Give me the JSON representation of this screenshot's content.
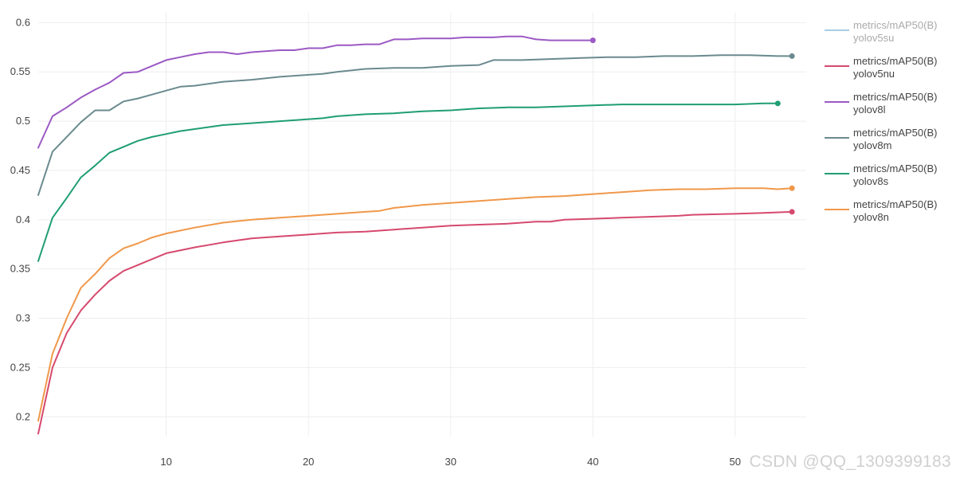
{
  "chart_data": {
    "type": "line",
    "xlim": [
      1,
      55
    ],
    "ylim": [
      0.18,
      0.61
    ],
    "x_ticks": [
      10,
      20,
      30,
      40,
      50
    ],
    "y_ticks": [
      0.2,
      0.25,
      0.3,
      0.35,
      0.4,
      0.45,
      0.5,
      0.55,
      0.6
    ],
    "x_tick_labels": [
      "10",
      "20",
      "30",
      "40",
      "50"
    ],
    "y_tick_labels": [
      "0.2",
      "0.25",
      "0.3",
      "0.35",
      "0.4",
      "0.45",
      "0.5",
      "0.55",
      "0.6"
    ],
    "grid": true,
    "legend_position": "right",
    "series": [
      {
        "name_line1": "metrics/mAP50(B)",
        "name_line2": "yolov5su",
        "color": "#a6cee3",
        "muted": true,
        "x": [],
        "y": []
      },
      {
        "name_line1": "metrics/mAP50(B)",
        "name_line2": "yolov5nu",
        "color": "#d6496e",
        "muted": false,
        "x": [
          1,
          2,
          3,
          4,
          5,
          6,
          7,
          8,
          9,
          10,
          12,
          14,
          15,
          16,
          18,
          20,
          22,
          24,
          26,
          28,
          30,
          32,
          34,
          36,
          37,
          38,
          40,
          42,
          44,
          46,
          47,
          50,
          52,
          54
        ],
        "y": [
          0.183,
          0.25,
          0.285,
          0.308,
          0.324,
          0.338,
          0.348,
          0.354,
          0.36,
          0.366,
          0.372,
          0.377,
          0.379,
          0.381,
          0.383,
          0.385,
          0.387,
          0.388,
          0.39,
          0.392,
          0.394,
          0.395,
          0.396,
          0.398,
          0.398,
          0.4,
          0.401,
          0.402,
          0.403,
          0.404,
          0.405,
          0.406,
          0.407,
          0.408
        ]
      },
      {
        "name_line1": "metrics/mAP50(B)",
        "name_line2": "yolov8l",
        "color": "#9b59c4",
        "muted": false,
        "x": [
          1,
          2,
          3,
          4,
          5,
          6,
          7,
          8,
          9,
          10,
          11,
          12,
          13,
          14,
          15,
          16,
          17,
          18,
          19,
          20,
          21,
          22,
          23,
          24,
          25,
          26,
          27,
          28,
          29,
          30,
          31,
          32,
          33,
          34,
          35,
          36,
          37,
          38,
          39,
          40
        ],
        "y": [
          0.473,
          0.505,
          0.514,
          0.524,
          0.532,
          0.539,
          0.549,
          0.55,
          0.556,
          0.562,
          0.565,
          0.568,
          0.57,
          0.57,
          0.568,
          0.57,
          0.571,
          0.572,
          0.572,
          0.574,
          0.574,
          0.577,
          0.577,
          0.578,
          0.578,
          0.583,
          0.583,
          0.584,
          0.584,
          0.584,
          0.585,
          0.585,
          0.585,
          0.586,
          0.586,
          0.583,
          0.582,
          0.582,
          0.582,
          0.582
        ]
      },
      {
        "name_line1": "metrics/mAP50(B)",
        "name_line2": "yolov8m",
        "color": "#6a8a8f",
        "muted": false,
        "x": [
          1,
          2,
          3,
          4,
          5,
          6,
          7,
          8,
          9,
          10,
          11,
          12,
          14,
          16,
          18,
          20,
          21,
          22,
          24,
          26,
          28,
          30,
          32,
          33,
          35,
          37,
          39,
          41,
          43,
          45,
          47,
          49,
          51,
          53,
          54
        ],
        "y": [
          0.425,
          0.469,
          0.484,
          0.499,
          0.511,
          0.511,
          0.52,
          0.523,
          0.527,
          0.531,
          0.535,
          0.536,
          0.54,
          0.542,
          0.545,
          0.547,
          0.548,
          0.55,
          0.553,
          0.554,
          0.554,
          0.556,
          0.557,
          0.562,
          0.562,
          0.563,
          0.564,
          0.565,
          0.565,
          0.566,
          0.566,
          0.567,
          0.567,
          0.566,
          0.566
        ]
      },
      {
        "name_line1": "metrics/mAP50(B)",
        "name_line2": "yolov8s",
        "color": "#1f9e73",
        "muted": false,
        "x": [
          1,
          2,
          3,
          4,
          5,
          6,
          7,
          8,
          9,
          10,
          11,
          12,
          13,
          14,
          16,
          18,
          20,
          21,
          22,
          24,
          26,
          28,
          30,
          32,
          34,
          36,
          38,
          40,
          42,
          44,
          46,
          48,
          50,
          52,
          53
        ],
        "y": [
          0.358,
          0.402,
          0.422,
          0.443,
          0.455,
          0.468,
          0.474,
          0.48,
          0.484,
          0.487,
          0.49,
          0.492,
          0.494,
          0.496,
          0.498,
          0.5,
          0.502,
          0.503,
          0.505,
          0.507,
          0.508,
          0.51,
          0.511,
          0.513,
          0.514,
          0.514,
          0.515,
          0.516,
          0.517,
          0.517,
          0.517,
          0.517,
          0.517,
          0.518,
          0.518
        ]
      },
      {
        "name_line1": "metrics/mAP50(B)",
        "name_line2": "yolov8n",
        "color": "#f0984a",
        "muted": false,
        "x": [
          1,
          2,
          3,
          4,
          5,
          6,
          7,
          8,
          9,
          10,
          11,
          12,
          14,
          16,
          18,
          20,
          22,
          24,
          25,
          26,
          28,
          30,
          32,
          34,
          36,
          38,
          40,
          42,
          44,
          46,
          48,
          50,
          52,
          53,
          54
        ],
        "y": [
          0.196,
          0.264,
          0.3,
          0.331,
          0.345,
          0.361,
          0.371,
          0.376,
          0.382,
          0.386,
          0.389,
          0.392,
          0.397,
          0.4,
          0.402,
          0.404,
          0.406,
          0.408,
          0.409,
          0.412,
          0.415,
          0.417,
          0.419,
          0.421,
          0.423,
          0.424,
          0.426,
          0.428,
          0.43,
          0.431,
          0.431,
          0.432,
          0.432,
          0.431,
          0.432
        ]
      }
    ]
  },
  "watermark": "CSDN @QQ_1309399183"
}
